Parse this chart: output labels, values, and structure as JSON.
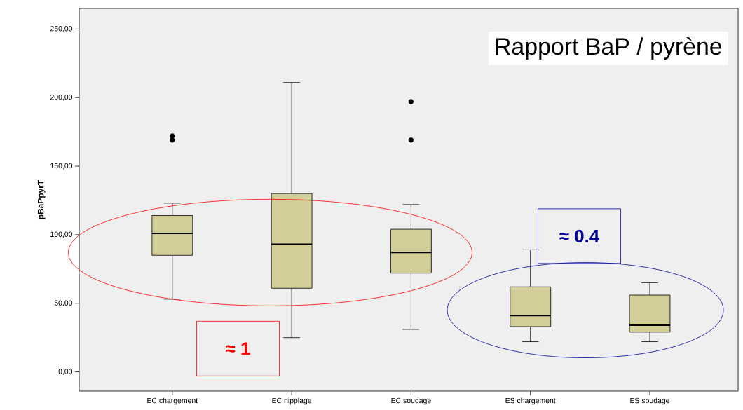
{
  "chart_data": {
    "type": "box",
    "title": "Rapport BaP / pyrène",
    "ylabel": "pBaPpyrT",
    "categories": [
      "EC chargement",
      "EC nipplage",
      "EC soudage",
      "ES chargement",
      "ES soudage"
    ],
    "color": "#d3cd98",
    "boxes": [
      {
        "low": 53,
        "q1": 85,
        "median": 101,
        "q3": 114,
        "high": 123,
        "outliers": [
          172,
          169
        ]
      },
      {
        "low": 25,
        "q1": 61,
        "median": 93,
        "q3": 130,
        "high": 211
      },
      {
        "low": 31,
        "q1": 72,
        "median": 87,
        "q3": 104,
        "high": 122,
        "outliers": [
          197,
          169
        ]
      },
      {
        "low": 22,
        "q1": 33,
        "median": 41,
        "q3": 62,
        "high": 89
      },
      {
        "low": 22,
        "q1": 29,
        "median": 34,
        "q3": 56,
        "high": 65
      }
    ],
    "ylim": [
      -14,
      265
    ],
    "yticks": [
      {
        "value": 0,
        "label": "0,00"
      },
      {
        "value": 50,
        "label": "50,00"
      },
      {
        "value": 100,
        "label": "100,00"
      },
      {
        "value": 150,
        "label": "150,00"
      },
      {
        "value": 200,
        "label": "200,00"
      },
      {
        "value": 250,
        "label": "250,00"
      }
    ],
    "annotations": [
      "≈ 1",
      "≈ 0.4"
    ]
  }
}
